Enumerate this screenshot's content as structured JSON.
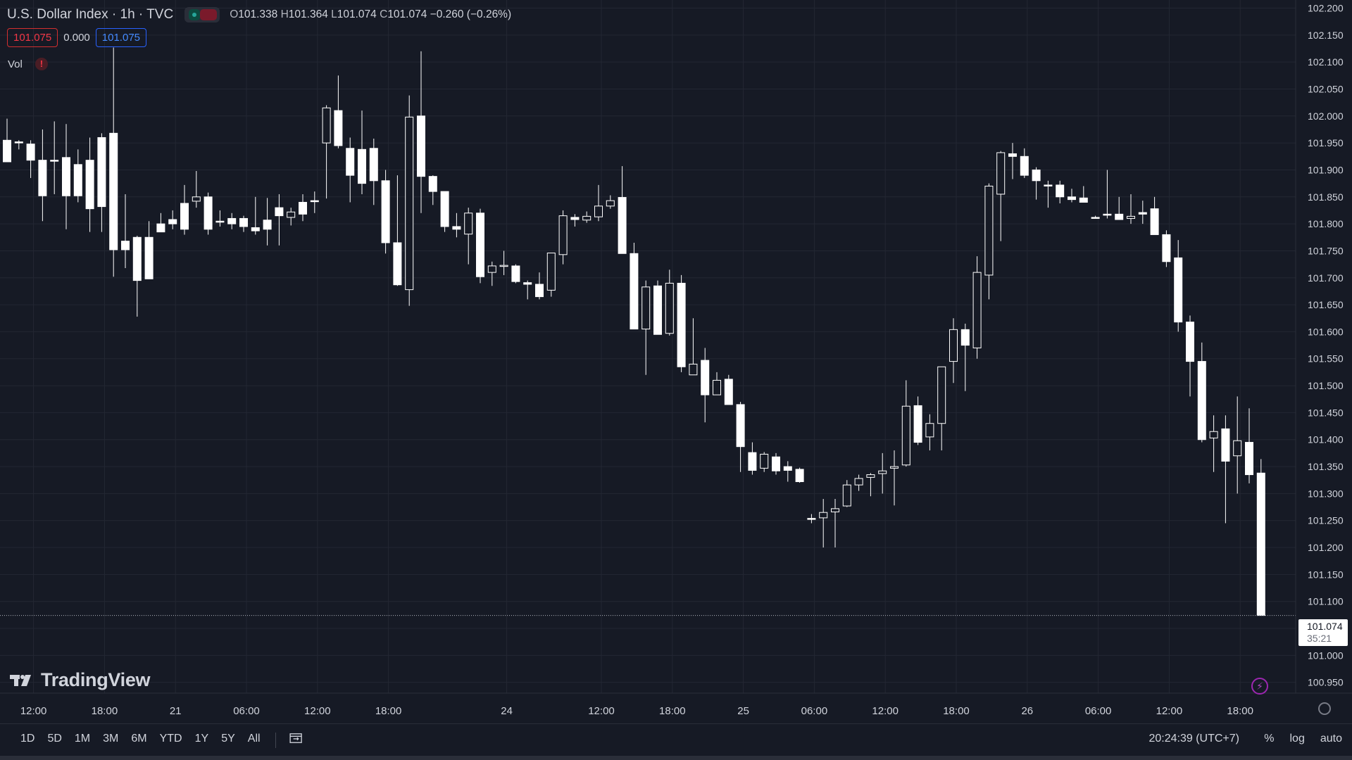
{
  "header": {
    "symbol_title": "U.S. Dollar Index · 1h · TVC",
    "ohlc": {
      "o_label": "O",
      "o": "101.338",
      "h_label": "H",
      "h": "101.364",
      "l_label": "L",
      "l": "101.074",
      "c_label": "C",
      "c": "101.074",
      "change": "−0.260 (−0.26%)"
    },
    "sell_price": "101.075",
    "spread": "0.000",
    "buy_price": "101.075",
    "vol_label": "Vol",
    "warning_glyph": "!"
  },
  "logo_text": "TradingView",
  "last_price": {
    "value": "101.074",
    "countdown": "35:21"
  },
  "bottom_bar": {
    "ranges": [
      "1D",
      "5D",
      "1M",
      "3M",
      "6M",
      "YTD",
      "1Y",
      "5Y",
      "All"
    ],
    "clock": "20:24:39 (UTC+7)",
    "percent_label": "%",
    "log_label": "log",
    "auto_label": "auto",
    "compare_icon": "calendar-range-icon"
  },
  "colors": {
    "background": "#161a25",
    "candle": "#ffffff",
    "grid": "#232733",
    "text": "#d1d4dc"
  },
  "chart_data": {
    "type": "candlestick",
    "title": "U.S. Dollar Index · 1h · TVC",
    "ylim": [
      100.93,
      102.215
    ],
    "y_ticks": [
      "102.200",
      "102.150",
      "102.100",
      "102.050",
      "102.000",
      "101.950",
      "101.900",
      "101.850",
      "101.800",
      "101.750",
      "101.700",
      "101.650",
      "101.600",
      "101.550",
      "101.500",
      "101.450",
      "101.400",
      "101.350",
      "101.300",
      "101.250",
      "101.200",
      "101.150",
      "101.100",
      "101.050",
      "101.000",
      "100.950"
    ],
    "x_ticks": [
      {
        "label": "12:00",
        "bar": 2
      },
      {
        "label": "18:00",
        "bar": 8
      },
      {
        "label": "21",
        "bar": 14
      },
      {
        "label": "06:00",
        "bar": 20
      },
      {
        "label": "12:00",
        "bar": 26
      },
      {
        "label": "18:00",
        "bar": 32
      },
      {
        "label": "24",
        "bar": 42
      },
      {
        "label": "12:00",
        "bar": 50
      },
      {
        "label": "18:00",
        "bar": 56
      },
      {
        "label": "25",
        "bar": 62
      },
      {
        "label": "06:00",
        "bar": 68
      },
      {
        "label": "12:00",
        "bar": 74
      },
      {
        "label": "18:00",
        "bar": 80
      },
      {
        "label": "26",
        "bar": 86
      },
      {
        "label": "06:00",
        "bar": 92
      },
      {
        "label": "12:00",
        "bar": 98
      },
      {
        "label": "18:00",
        "bar": 104
      }
    ],
    "candles": [
      [
        101.955,
        101.995,
        101.915,
        101.915
      ],
      [
        101.952,
        101.955,
        101.938,
        101.952
      ],
      [
        101.948,
        101.955,
        101.885,
        101.918
      ],
      [
        101.918,
        101.975,
        101.805,
        101.852
      ],
      [
        101.918,
        101.99,
        101.855,
        101.918
      ],
      [
        101.923,
        101.985,
        101.79,
        101.852
      ],
      [
        101.91,
        101.938,
        101.84,
        101.852
      ],
      [
        101.918,
        101.96,
        101.785,
        101.828
      ],
      [
        101.96,
        101.968,
        101.785,
        101.832
      ],
      [
        101.968,
        102.127,
        101.702,
        101.752
      ],
      [
        101.768,
        101.855,
        101.718,
        101.752
      ],
      [
        101.775,
        101.778,
        101.628,
        101.695
      ],
      [
        101.775,
        101.805,
        101.7,
        101.698
      ],
      [
        101.8,
        101.82,
        101.785,
        101.785
      ],
      [
        101.808,
        101.825,
        101.79,
        101.8
      ],
      [
        101.838,
        101.872,
        101.78,
        101.79
      ],
      [
        101.842,
        101.898,
        101.83,
        101.85
      ],
      [
        101.85,
        101.858,
        101.78,
        101.79
      ],
      [
        101.805,
        101.825,
        101.795,
        101.805
      ],
      [
        101.81,
        101.82,
        101.79,
        101.8
      ],
      [
        101.81,
        101.815,
        101.785,
        101.795
      ],
      [
        101.793,
        101.85,
        101.78,
        101.787
      ],
      [
        101.807,
        101.848,
        101.76,
        101.79
      ],
      [
        101.83,
        101.855,
        101.76,
        101.815
      ],
      [
        101.812,
        101.83,
        101.797,
        101.822
      ],
      [
        101.84,
        101.855,
        101.805,
        101.818
      ],
      [
        101.843,
        101.86,
        101.82,
        101.843
      ],
      [
        101.95,
        102.02,
        101.847,
        102.015
      ],
      [
        102.01,
        102.075,
        101.94,
        101.945
      ],
      [
        101.94,
        101.96,
        101.84,
        101.89
      ],
      [
        101.938,
        102.01,
        101.855,
        101.875
      ],
      [
        101.94,
        101.958,
        101.835,
        101.88
      ],
      [
        101.88,
        101.9,
        101.745,
        101.765
      ],
      [
        101.765,
        101.89,
        101.685,
        101.687
      ],
      [
        101.678,
        102.038,
        101.648,
        101.998
      ],
      [
        102.0,
        102.12,
        101.82,
        101.888
      ],
      [
        101.888,
        101.89,
        101.835,
        101.86
      ],
      [
        101.86,
        101.86,
        101.785,
        101.795
      ],
      [
        101.795,
        101.82,
        101.775,
        101.79
      ],
      [
        101.781,
        101.83,
        101.725,
        101.82
      ],
      [
        101.82,
        101.828,
        101.69,
        101.702
      ],
      [
        101.71,
        101.73,
        101.685,
        101.722
      ],
      [
        101.722,
        101.75,
        101.705,
        101.723
      ],
      [
        101.722,
        101.725,
        101.69,
        101.693
      ],
      [
        101.691,
        101.695,
        101.66,
        101.688
      ],
      [
        101.688,
        101.71,
        101.66,
        101.665
      ],
      [
        101.677,
        101.743,
        101.665,
        101.746
      ],
      [
        101.743,
        101.825,
        101.725,
        101.815
      ],
      [
        101.812,
        101.818,
        101.795,
        101.808
      ],
      [
        101.807,
        101.823,
        101.802,
        101.814
      ],
      [
        101.813,
        101.872,
        101.805,
        101.833
      ],
      [
        101.833,
        101.853,
        101.828,
        101.843
      ],
      [
        101.849,
        101.907,
        101.745,
        101.745
      ],
      [
        101.745,
        101.765,
        101.605,
        101.605
      ],
      [
        101.605,
        101.695,
        101.52,
        101.683
      ],
      [
        101.685,
        101.695,
        101.595,
        101.595
      ],
      [
        101.597,
        101.715,
        101.593,
        101.69
      ],
      [
        101.69,
        101.705,
        101.525,
        101.535
      ],
      [
        101.52,
        101.625,
        101.522,
        101.54
      ],
      [
        101.547,
        101.57,
        101.432,
        101.483
      ],
      [
        101.483,
        101.525,
        101.49,
        101.51
      ],
      [
        101.512,
        101.52,
        101.465,
        101.465
      ],
      [
        101.465,
        101.47,
        101.34,
        101.387
      ],
      [
        101.376,
        101.395,
        101.335,
        101.343
      ],
      [
        101.347,
        101.377,
        101.34,
        101.373
      ],
      [
        101.368,
        101.375,
        101.335,
        101.342
      ],
      [
        101.35,
        101.36,
        101.322,
        101.343
      ],
      [
        101.345,
        101.348,
        101.32,
        101.322
      ],
      [
        101.254,
        101.262,
        101.245,
        101.254
      ],
      [
        101.255,
        101.29,
        101.2,
        101.265
      ],
      [
        101.266,
        101.29,
        101.2,
        101.272
      ],
      [
        101.277,
        101.325,
        101.275,
        101.316
      ],
      [
        101.316,
        101.335,
        101.305,
        101.328
      ],
      [
        101.33,
        101.338,
        101.295,
        101.335
      ],
      [
        101.337,
        101.375,
        101.3,
        101.342
      ],
      [
        101.347,
        101.38,
        101.278,
        101.35
      ],
      [
        101.353,
        101.51,
        101.35,
        101.462
      ],
      [
        101.463,
        101.48,
        101.39,
        101.395
      ],
      [
        101.405,
        101.447,
        101.38,
        101.43
      ],
      [
        101.43,
        101.535,
        101.38,
        101.535
      ],
      [
        101.545,
        101.625,
        101.505,
        101.604
      ],
      [
        101.604,
        101.615,
        101.49,
        101.575
      ],
      [
        101.57,
        101.74,
        101.55,
        101.71
      ],
      [
        101.705,
        101.875,
        101.66,
        101.87
      ],
      [
        101.855,
        101.935,
        101.768,
        101.932
      ],
      [
        101.93,
        101.95,
        101.883,
        101.925
      ],
      [
        101.925,
        101.94,
        101.885,
        101.89
      ],
      [
        101.9,
        101.905,
        101.845,
        101.88
      ],
      [
        101.872,
        101.88,
        101.83,
        101.872
      ],
      [
        101.872,
        101.88,
        101.838,
        101.85
      ],
      [
        101.85,
        101.865,
        101.84,
        101.845
      ],
      [
        101.848,
        101.87,
        101.84,
        101.84
      ],
      [
        101.812,
        101.815,
        101.81,
        101.812
      ],
      [
        101.818,
        101.9,
        101.81,
        101.816
      ],
      [
        101.818,
        101.85,
        101.808,
        101.808
      ],
      [
        101.81,
        101.855,
        101.8,
        101.814
      ],
      [
        101.821,
        101.843,
        101.8,
        101.818
      ],
      [
        101.828,
        101.85,
        101.78,
        101.78
      ],
      [
        101.78,
        101.788,
        101.72,
        101.73
      ],
      [
        101.737,
        101.77,
        101.6,
        101.618
      ],
      [
        101.618,
        101.63,
        101.48,
        101.545
      ],
      [
        101.545,
        101.58,
        101.395,
        101.4
      ],
      [
        101.403,
        101.445,
        101.34,
        101.415
      ],
      [
        101.42,
        101.445,
        101.245,
        101.36
      ],
      [
        101.37,
        101.48,
        101.3,
        101.398
      ],
      [
        101.395,
        101.458,
        101.319,
        101.335
      ],
      [
        101.338,
        101.364,
        101.074,
        101.074
      ]
    ]
  }
}
